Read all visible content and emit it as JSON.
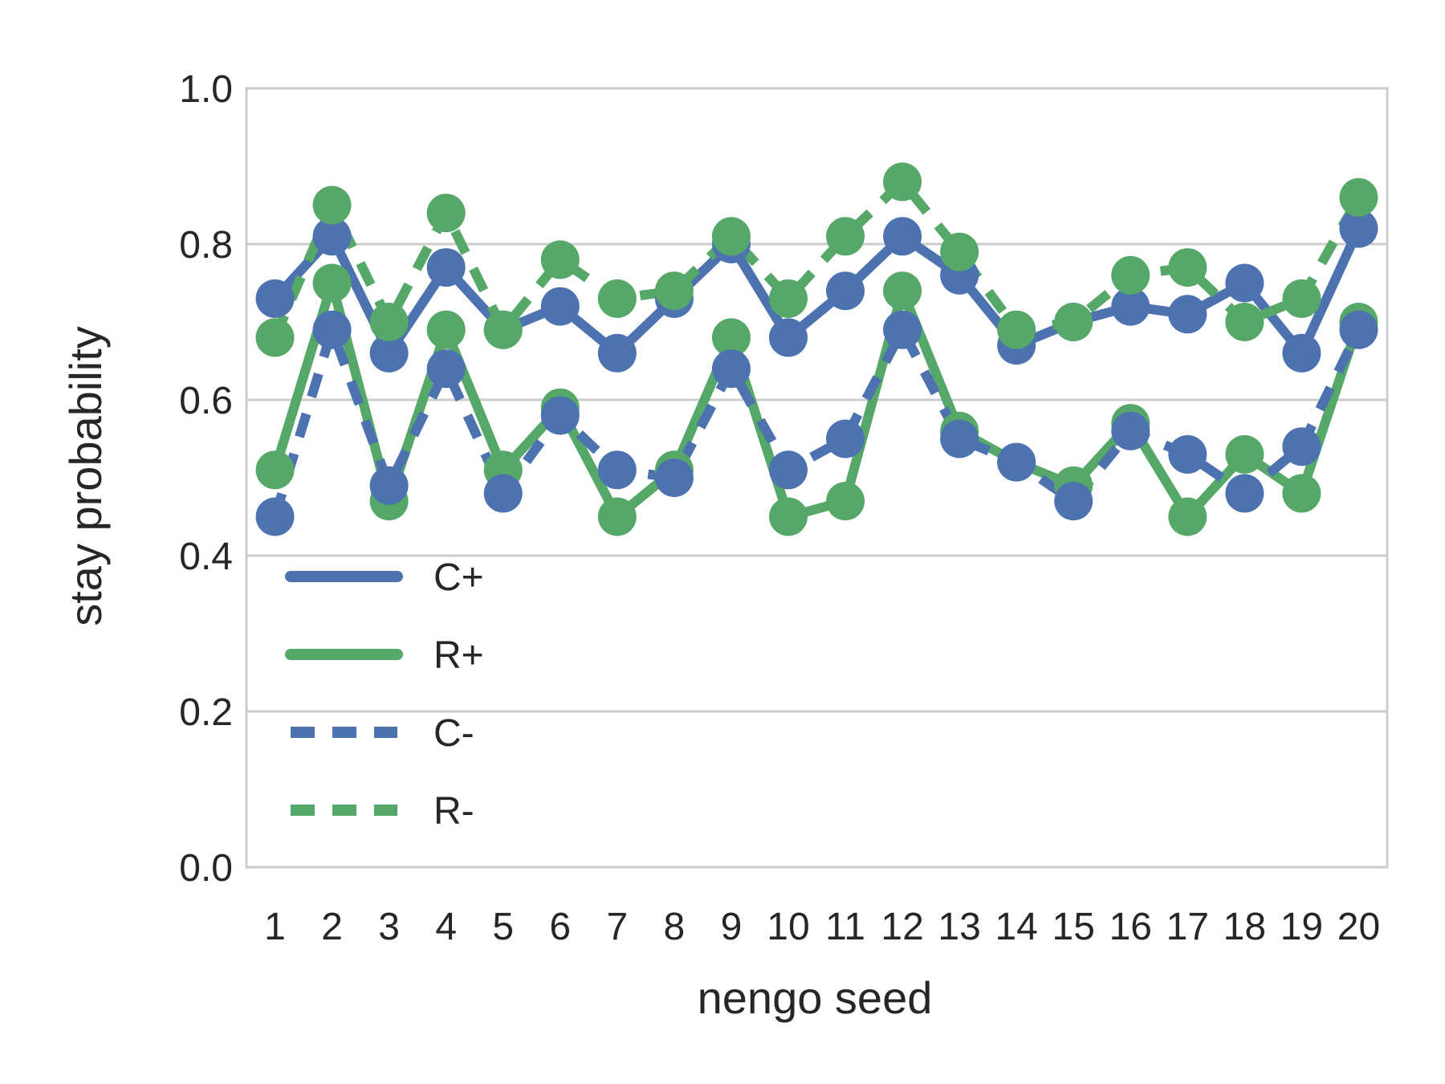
{
  "chart_data": {
    "type": "line",
    "xlabel": "nengo seed",
    "ylabel": "stay probability",
    "categories": [
      "1",
      "2",
      "3",
      "4",
      "5",
      "6",
      "7",
      "8",
      "9",
      "10",
      "11",
      "12",
      "13",
      "14",
      "15",
      "16",
      "17",
      "18",
      "19",
      "20"
    ],
    "ylim": [
      0,
      1
    ],
    "yticks": [
      "0.0",
      "0.2",
      "0.4",
      "0.6",
      "0.8",
      "1.0"
    ],
    "grid": true,
    "legend_placement": "lower-left",
    "series": [
      {
        "name": "C+",
        "color": "#4c72b0",
        "dash": false,
        "values": [
          0.73,
          0.81,
          0.66,
          0.77,
          0.69,
          0.72,
          0.66,
          0.73,
          0.8,
          0.68,
          0.74,
          0.81,
          0.76,
          0.67,
          0.7,
          0.72,
          0.71,
          0.75,
          0.66,
          0.82
        ]
      },
      {
        "name": "R+",
        "color": "#55a868",
        "dash": false,
        "values": [
          0.51,
          0.75,
          0.47,
          0.69,
          0.51,
          0.59,
          0.45,
          0.51,
          0.68,
          0.45,
          0.47,
          0.74,
          0.56,
          0.52,
          0.49,
          0.57,
          0.45,
          0.53,
          0.48,
          0.7
        ]
      },
      {
        "name": "C-",
        "color": "#4c72b0",
        "dash": true,
        "values": [
          0.45,
          0.69,
          0.49,
          0.64,
          0.48,
          0.58,
          0.51,
          0.5,
          0.64,
          0.51,
          0.55,
          0.69,
          0.55,
          0.52,
          0.47,
          0.56,
          0.53,
          0.48,
          0.54,
          0.69
        ]
      },
      {
        "name": "R-",
        "color": "#55a868",
        "dash": true,
        "values": [
          0.68,
          0.85,
          0.7,
          0.84,
          0.69,
          0.78,
          0.73,
          0.74,
          0.81,
          0.73,
          0.81,
          0.88,
          0.79,
          0.69,
          0.7,
          0.76,
          0.77,
          0.7,
          0.73,
          0.86
        ]
      }
    ]
  }
}
